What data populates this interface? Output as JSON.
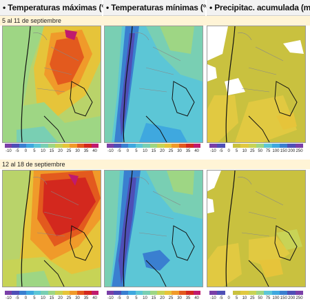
{
  "headers": [
    {
      "title": "Temperaturas máximas (°C)"
    },
    {
      "title": "Temperaturas mínimas (°C)"
    },
    {
      "title": "Precipitac. acumulada (mm)"
    }
  ],
  "periods": [
    "5 al 11 de septiembre",
    "12 al 18 de septiembre"
  ],
  "scales": {
    "temp": {
      "ticks": [
        "-10",
        "-5",
        "0",
        "5",
        "10",
        "15",
        "20",
        "25",
        "30",
        "35",
        "40"
      ],
      "colors": [
        "#7a3fa8",
        "#4e4fb6",
        "#3a7fd0",
        "#3fa8df",
        "#5cc6d6",
        "#79cfb3",
        "#9ed684",
        "#c7d356",
        "#e6c43a",
        "#f09a2a",
        "#e35a1e",
        "#d3281e",
        "#c01a6e"
      ]
    },
    "precip": {
      "ticks": [
        "-10",
        "-5",
        "0",
        "5",
        "10",
        "25",
        "50",
        "75",
        "100",
        "150",
        "200",
        "250"
      ],
      "colors": [
        "#7a3fa8",
        "#4e4fb6",
        "#ffffff",
        "#c9c13f",
        "#e1c941",
        "#c8d356",
        "#9ed684",
        "#5cc6d6",
        "#3fa8df",
        "#3a7fd0",
        "#4e4fb6",
        "#7a3fa8"
      ]
    }
  }
}
